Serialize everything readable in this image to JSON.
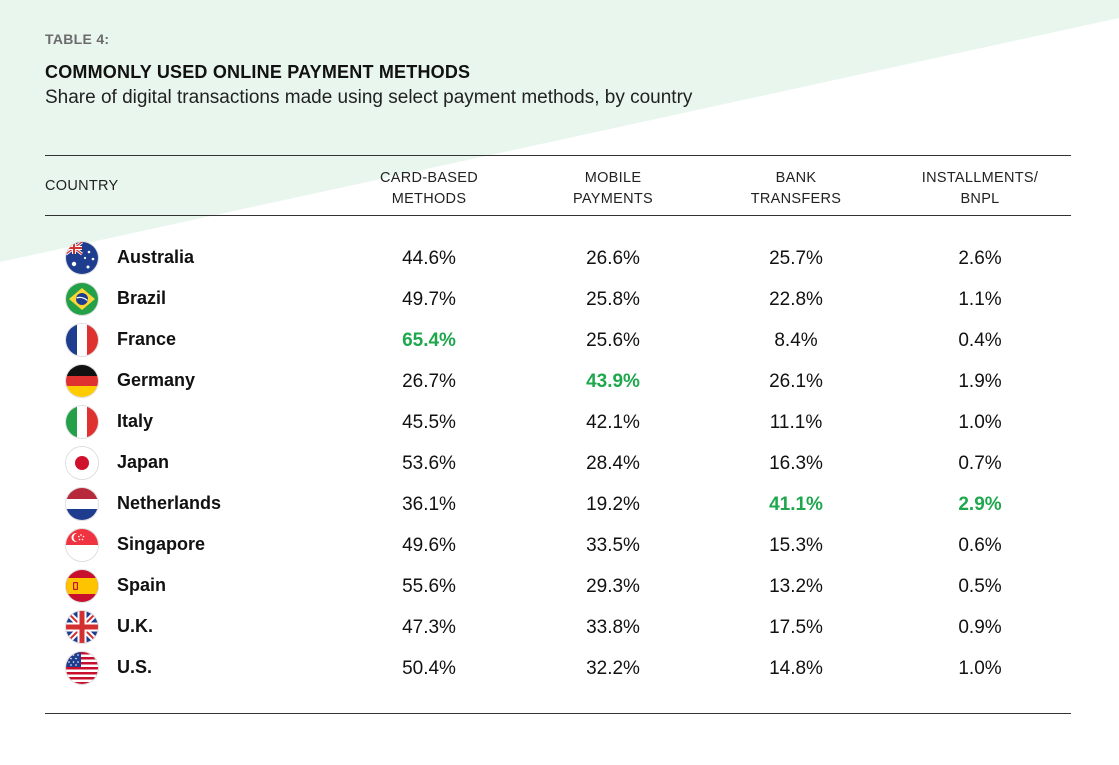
{
  "header": {
    "table_label": "TABLE 4:",
    "title": "COMMONLY USED ONLINE PAYMENT METHODS",
    "subtitle": "Share of digital transactions made using select payment methods, by country"
  },
  "columns": {
    "country": "COUNTRY",
    "card": "CARD-BASED\nMETHODS",
    "mobile": "MOBILE\nPAYMENTS",
    "bank": "BANK\nTRANSFERS",
    "bnpl": "INSTALLMENTS/\nBNPL"
  },
  "colors": {
    "highlight": "#1fa74e",
    "background_accent": "#e9f6ee"
  },
  "rows": [
    {
      "country": "Australia",
      "flag": "australia-flag-icon",
      "card": "44.6%",
      "mobile": "26.6%",
      "bank": "25.7%",
      "bnpl": "2.6%",
      "highlight": []
    },
    {
      "country": "Brazil",
      "flag": "brazil-flag-icon",
      "card": "49.7%",
      "mobile": "25.8%",
      "bank": "22.8%",
      "bnpl": "1.1%",
      "highlight": []
    },
    {
      "country": "France",
      "flag": "france-flag-icon",
      "card": "65.4%",
      "mobile": "25.6%",
      "bank": "8.4%",
      "bnpl": "0.4%",
      "highlight": [
        "card"
      ]
    },
    {
      "country": "Germany",
      "flag": "germany-flag-icon",
      "card": "26.7%",
      "mobile": "43.9%",
      "bank": "26.1%",
      "bnpl": "1.9%",
      "highlight": [
        "mobile"
      ]
    },
    {
      "country": "Italy",
      "flag": "italy-flag-icon",
      "card": "45.5%",
      "mobile": "42.1%",
      "bank": "11.1%",
      "bnpl": "1.0%",
      "highlight": []
    },
    {
      "country": "Japan",
      "flag": "japan-flag-icon",
      "card": "53.6%",
      "mobile": "28.4%",
      "bank": "16.3%",
      "bnpl": "0.7%",
      "highlight": []
    },
    {
      "country": "Netherlands",
      "flag": "netherlands-flag-icon",
      "card": "36.1%",
      "mobile": "19.2%",
      "bank": "41.1%",
      "bnpl": "2.9%",
      "highlight": [
        "bank",
        "bnpl"
      ]
    },
    {
      "country": "Singapore",
      "flag": "singapore-flag-icon",
      "card": "49.6%",
      "mobile": "33.5%",
      "bank": "15.3%",
      "bnpl": "0.6%",
      "highlight": []
    },
    {
      "country": "Spain",
      "flag": "spain-flag-icon",
      "card": "55.6%",
      "mobile": "29.3%",
      "bank": "13.2%",
      "bnpl": "0.5%",
      "highlight": []
    },
    {
      "country": "U.K.",
      "flag": "uk-flag-icon",
      "card": "47.3%",
      "mobile": "33.8%",
      "bank": "17.5%",
      "bnpl": "0.9%",
      "highlight": []
    },
    {
      "country": "U.S.",
      "flag": "us-flag-icon",
      "card": "50.4%",
      "mobile": "32.2%",
      "bank": "14.8%",
      "bnpl": "1.0%",
      "highlight": []
    }
  ]
}
